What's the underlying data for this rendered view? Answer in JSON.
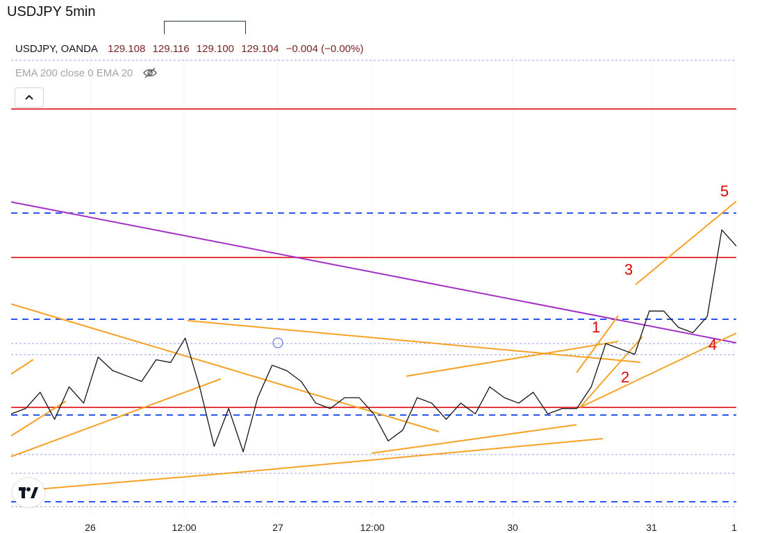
{
  "chart_title": "USDJPY 5min",
  "legend": {
    "symbol": "USDJPY, OANDA",
    "open": "129.108",
    "high": "129.116",
    "low": "129.100",
    "close": "129.104",
    "change": "−0.004 (−0.00%)"
  },
  "indicators_text": "EMA 200 close 0 EMA 20",
  "icons": {
    "visibility": "eye-crossed-icon",
    "collapse": "chevron-up-icon",
    "logo": "tradingview-logo-icon"
  },
  "colors": {
    "price": "#111111",
    "horizontal_level": "#e5393f",
    "dashed_level": "#2753ef",
    "dotted_level": "#8f9fe6",
    "trendline": "#f7a124",
    "long_trendline": "#a42ec5",
    "wave_label": "#e00000"
  },
  "chart_data": {
    "type": "line",
    "title": "USDJPY 5min",
    "x_tick_labels": [
      "26",
      "12:00",
      "27",
      "12:00",
      "30",
      "31",
      "1"
    ],
    "wave_labels": [
      "1",
      "2",
      "3",
      "4",
      "5"
    ],
    "ylim": [
      0,
      100
    ],
    "series": [
      {
        "x": [
          0,
          2,
          4,
          6,
          8,
          10,
          12,
          14,
          16,
          18,
          20,
          22,
          24,
          26,
          28,
          30,
          32,
          34,
          36,
          38,
          40,
          42,
          44,
          46,
          48,
          50,
          52,
          54,
          56,
          58,
          60,
          62,
          64,
          66,
          68,
          70,
          72,
          74,
          76,
          78,
          80,
          82,
          84,
          86,
          88,
          90,
          92,
          94,
          96,
          98,
          100
        ],
        "y": [
          24,
          26,
          32,
          22,
          34,
          28,
          45,
          40,
          38,
          36,
          44,
          43,
          52,
          34,
          12,
          26,
          10,
          30,
          42,
          40,
          36,
          28,
          26,
          30,
          30,
          24,
          14,
          18,
          30,
          28,
          22,
          28,
          24,
          34,
          30,
          28,
          32,
          24,
          26,
          26,
          34,
          50,
          48,
          46,
          62,
          62,
          56,
          54,
          60,
          92,
          86
        ]
      }
    ]
  }
}
